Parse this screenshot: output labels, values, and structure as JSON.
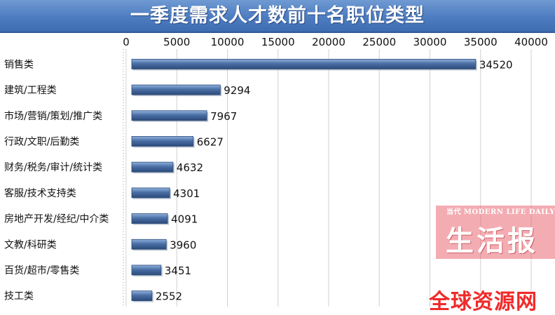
{
  "chart_data": {
    "type": "bar",
    "orientation": "horizontal",
    "title": "一季度需求人才数前十名职位类型",
    "categories": [
      "销售类",
      "建筑/工程类",
      "市场/营销/策划/推广类",
      "行政/文职/后勤类",
      "财务/税务/审计/统计类",
      "客服/技术支持类",
      "房地产开发/经纪/中介类",
      "文教/科研类",
      "百货/超市/零售类",
      "技工类"
    ],
    "values": [
      34520,
      9294,
      7967,
      6627,
      4632,
      4301,
      4091,
      3960,
      3451,
      2552
    ],
    "xticks": [
      "0",
      "5000",
      "10000",
      "15000",
      "20000",
      "25000",
      "30000",
      "35000",
      "40000"
    ],
    "xlim": [
      0,
      40000
    ],
    "axis_position": "top",
    "grid": true,
    "legend": "none",
    "colors": {
      "bar": "#4a6fa5",
      "bar_light": "#8fb1dc",
      "bar_dark": "#2c4a7a",
      "grid": "#d0d0d0",
      "title_bg": "#4d7cc0"
    }
  },
  "watermark": {
    "en": "当代 MODERN LIFE DAILY",
    "cn": "生活报"
  },
  "site_mark": "全球资源网"
}
